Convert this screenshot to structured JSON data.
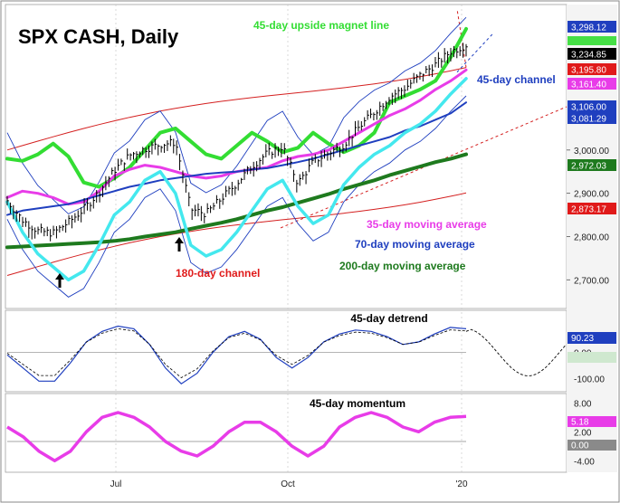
{
  "chart_data": {
    "type": "line",
    "title": "SPX CASH, Daily",
    "x_labels": [
      "Jul",
      "Oct",
      "'20"
    ],
    "main_panel": {
      "y_ticks": [
        "3,000.00",
        "2,900.00",
        "2,800.00",
        "2,700.00"
      ],
      "y_tick_values": [
        3000,
        2900,
        2800,
        2700
      ],
      "ylim": [
        2640,
        3330
      ],
      "price_tags": [
        {
          "label": "3,298.12",
          "value": 3298.12,
          "color": "#1f3fbf"
        },
        {
          "label": "3,234.85",
          "value": 3234.85,
          "color": "#000000"
        },
        {
          "label": "3,195.80",
          "value": 3195.8,
          "color": "#e01a1a"
        },
        {
          "label": "3,161.40",
          "value": 3161.4,
          "color": "#e83ce8"
        },
        {
          "label": "3,106.00",
          "value": 3106.0,
          "color": "#1f3fbf"
        },
        {
          "label": "3,081.29",
          "value": 3081.29,
          "color": "#1f3fbf"
        },
        {
          "label": "2,972.03",
          "value": 2972.03,
          "color": "#1e7a1e"
        },
        {
          "label": "2,873.17",
          "value": 2873.17,
          "color": "#e01a1a"
        }
      ],
      "annotations": [
        {
          "text": "45-day upside magnet line",
          "color": "#33dd33"
        },
        {
          "text": "45-day channel",
          "color": "#1f3fbf"
        },
        {
          "text": "35-day moving average",
          "color": "#e83ce8"
        },
        {
          "text": "70-day moving average",
          "color": "#1f3fbf"
        },
        {
          "text": "200-day moving average",
          "color": "#1e7a1e"
        },
        {
          "text": "180-day channel",
          "color": "#e01a1a"
        }
      ],
      "series": [
        {
          "name": "45-day upside magnet line",
          "color": "#33dd33",
          "values": [
            2980,
            2975,
            2990,
            3015,
            2985,
            2925,
            2915,
            2935,
            2960,
            3000,
            3040,
            3050,
            3020,
            2990,
            2980,
            3010,
            3040,
            3020,
            2995,
            3005,
            3040,
            3015,
            2995,
            3010,
            3040,
            3110,
            3125,
            3140,
            3160,
            3215,
            3280
          ]
        },
        {
          "name": "35-day moving average",
          "color": "#e83ce8",
          "values": [
            2890,
            2905,
            2900,
            2890,
            2875,
            2880,
            2905,
            2940,
            2955,
            2965,
            2960,
            2950,
            2940,
            2935,
            2940,
            2950,
            2955,
            2960,
            2975,
            2985,
            2990,
            3000,
            3020,
            3040,
            3060,
            3080,
            3095,
            3115,
            3140,
            3160,
            3185
          ]
        },
        {
          "name": "70-day moving average",
          "color": "#1f3fbf",
          "values": [
            2850,
            2860,
            2865,
            2870,
            2875,
            2885,
            2895,
            2905,
            2915,
            2922,
            2930,
            2935,
            2940,
            2945,
            2948,
            2950,
            2955,
            2958,
            2965,
            2972,
            2980,
            2990,
            3000,
            3010,
            3020,
            3030,
            3045,
            3055,
            3070,
            3085,
            3110
          ]
        },
        {
          "name": "200-day moving average",
          "color": "#1e7a1e",
          "values": [
            2775,
            2777,
            2779,
            2781,
            2783,
            2785,
            2787,
            2790,
            2794,
            2800,
            2805,
            2810,
            2818,
            2825,
            2832,
            2840,
            2850,
            2860,
            2868,
            2878,
            2888,
            2898,
            2910,
            2920,
            2930,
            2942,
            2952,
            2962,
            2972,
            2980,
            2990
          ]
        },
        {
          "name": "cyan cycle",
          "color": "#44e8ee",
          "values": [
            2880,
            2810,
            2760,
            2730,
            2700,
            2720,
            2780,
            2850,
            2880,
            2930,
            2950,
            2900,
            2780,
            2755,
            2770,
            2810,
            2860,
            2910,
            2930,
            2870,
            2830,
            2850,
            2920,
            2960,
            2990,
            3010,
            3040,
            3060,
            3090,
            3130,
            3165
          ]
        },
        {
          "name": "SPX price",
          "color": "#000000",
          "values": [
            2880,
            2835,
            2810,
            2805,
            2830,
            2860,
            2900,
            2950,
            2985,
            3000,
            3010,
            3015,
            2860,
            2850,
            2885,
            2920,
            2960,
            2990,
            3005,
            2920,
            2970,
            2990,
            3010,
            3050,
            3085,
            3120,
            3140,
            3170,
            3195,
            3225,
            3240
          ]
        }
      ]
    },
    "detrend_panel": {
      "title": "45-day detrend",
      "y_ticks": [
        "0.00",
        "-100.00"
      ],
      "ylim": [
        -140,
        150
      ],
      "last_value_label": "90.23",
      "values": [
        -10,
        -60,
        -110,
        -110,
        -40,
        40,
        80,
        100,
        90,
        30,
        -60,
        -120,
        -80,
        0,
        60,
        80,
        50,
        -20,
        -60,
        -20,
        40,
        70,
        85,
        80,
        60,
        30,
        40,
        70,
        95,
        90
      ]
    },
    "momentum_panel": {
      "title": "45-day momentum",
      "y_ticks": [
        "8.00",
        "2.00",
        "-4.00"
      ],
      "ylim": [
        -6,
        9
      ],
      "last_value_label": "5.18",
      "zero_label": "0.00",
      "values": [
        3,
        1,
        -2,
        -4,
        -2,
        2,
        5,
        6,
        5,
        3,
        0,
        -2,
        -3,
        -1,
        2,
        4,
        4,
        2,
        -1,
        -3,
        -1,
        3,
        5,
        6,
        5,
        3,
        2,
        4,
        5,
        5.2
      ]
    }
  }
}
